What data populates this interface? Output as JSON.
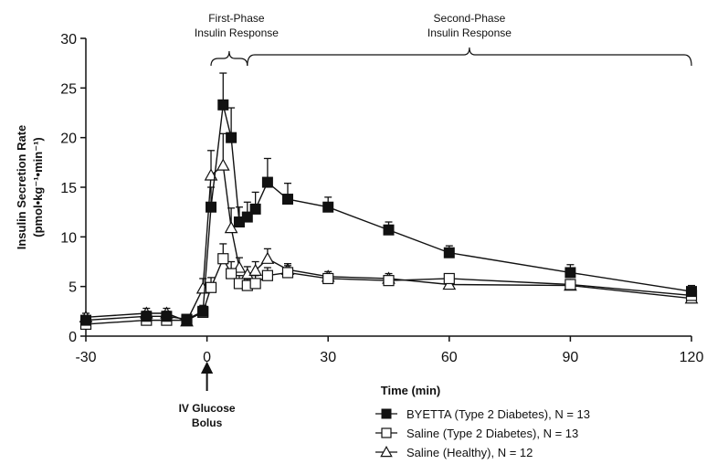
{
  "chart_data": {
    "type": "line",
    "xlabel": "Time (min)",
    "ylabel_lines": [
      "Insulin Secretion Rate",
      "(pmol•kg⁻¹•min⁻¹)"
    ],
    "xlim": [
      -30,
      120
    ],
    "ylim": [
      0,
      30
    ],
    "x_ticks": [
      -30,
      0,
      30,
      60,
      90,
      120
    ],
    "y_ticks": [
      0,
      5,
      10,
      15,
      20,
      25,
      30
    ],
    "grid": false,
    "legend_placement": "bottom-right",
    "series": [
      {
        "name": "BYETTA (Type 2 Diabetes), N = 13",
        "marker": "filled-square",
        "color": "#111111",
        "x": [
          -30,
          -15,
          -10,
          -5,
          -1,
          1,
          4,
          6,
          8,
          10,
          12,
          15,
          20,
          30,
          45,
          60,
          90,
          120
        ],
        "y": [
          1.6,
          2.0,
          2.0,
          1.7,
          2.5,
          13.0,
          23.3,
          20.0,
          11.5,
          12.0,
          12.8,
          15.5,
          13.8,
          13.0,
          10.7,
          8.4,
          6.4,
          4.5
        ],
        "err": [
          0.4,
          0.5,
          0.5,
          0.4,
          0.6,
          2.0,
          3.2,
          3.0,
          1.5,
          1.5,
          1.7,
          2.4,
          1.6,
          1.0,
          0.8,
          0.7,
          0.8,
          0.6
        ]
      },
      {
        "name": "Saline (Type 2 Diabetes), N = 13",
        "marker": "open-square",
        "color": "#111111",
        "x": [
          -30,
          -15,
          -10,
          -5,
          -1,
          1,
          4,
          6,
          8,
          10,
          12,
          15,
          20,
          30,
          45,
          60,
          90,
          120
        ],
        "y": [
          1.2,
          1.6,
          1.6,
          1.6,
          2.4,
          4.9,
          7.8,
          6.3,
          5.3,
          5.1,
          5.3,
          6.1,
          6.4,
          5.8,
          5.6,
          5.8,
          5.2,
          4.1
        ],
        "err": [
          0.3,
          0.4,
          0.4,
          0.3,
          0.4,
          1.0,
          1.5,
          1.2,
          0.8,
          0.7,
          0.8,
          0.8,
          0.7,
          0.5,
          0.4,
          0.4,
          0.5,
          0.5
        ]
      },
      {
        "name": "Saline (Healthy), N = 12",
        "marker": "open-triangle",
        "color": "#111111",
        "x": [
          -30,
          -15,
          -10,
          -5,
          -1,
          1,
          4,
          6,
          8,
          10,
          12,
          15,
          20,
          30,
          45,
          60,
          90,
          120
        ],
        "y": [
          1.9,
          2.3,
          2.3,
          1.5,
          4.8,
          16.2,
          17.2,
          10.9,
          6.9,
          6.2,
          6.6,
          7.8,
          6.7,
          6.0,
          5.8,
          5.2,
          5.1,
          3.8
        ],
        "err": [
          0.4,
          0.5,
          0.5,
          0.3,
          1.0,
          2.5,
          3.2,
          2.0,
          1.0,
          0.8,
          0.9,
          1.0,
          0.6,
          0.5,
          0.5,
          0.4,
          0.5,
          0.4
        ]
      }
    ],
    "annotations": {
      "first_phase": [
        "First-Phase",
        "Insulin Response"
      ],
      "second_phase": [
        "Second-Phase",
        "Insulin Response"
      ],
      "first_phase_range": [
        1,
        10
      ],
      "second_phase_range": [
        10,
        120
      ],
      "glucose_bolus": [
        "IV Glucose",
        "Bolus"
      ],
      "glucose_bolus_x": 0
    }
  }
}
